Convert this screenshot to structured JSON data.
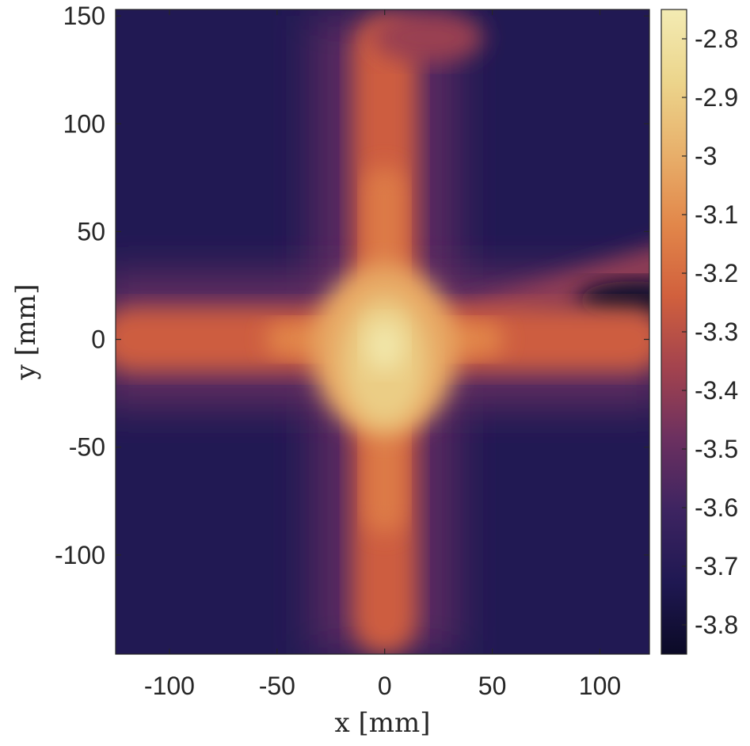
{
  "chart_data": {
    "type": "heatmap",
    "xlabel": "x [mm]",
    "ylabel": "y [mm]",
    "xlim": [
      -125,
      123
    ],
    "ylim": [
      -146,
      153
    ],
    "xticks": [
      -100,
      -50,
      0,
      50,
      100
    ],
    "yticks": [
      -100,
      -50,
      0,
      50,
      100,
      150
    ],
    "colorbar": {
      "range": [
        -3.85,
        -2.75
      ],
      "ticks": [
        -3.8,
        -3.7,
        -3.6,
        -3.5,
        -3.4,
        -3.3,
        -3.2,
        -3.1,
        -3,
        -2.9,
        -2.8
      ],
      "colormap": [
        "#0b0a26",
        "#1f1852",
        "#3d2461",
        "#6b3060",
        "#a3434e",
        "#d1603d",
        "#e2874a",
        "#e8b06b",
        "#ecd58c",
        "#f3ebb3"
      ]
    },
    "background_value": -3.72,
    "peak": {
      "x": 0,
      "y": -5,
      "value": -2.78
    },
    "features": [
      {
        "name": "vertical-band",
        "x_center": 0,
        "halfwidth_mm": 15,
        "y_range": [
          -146,
          150
        ],
        "value": -3.25
      },
      {
        "name": "horizontal-band",
        "y_center": 0,
        "halfwidth_mm": 15,
        "x_range": [
          -125,
          123
        ],
        "value": -3.25
      },
      {
        "name": "upper-right-streak",
        "from": [
          20,
          15
        ],
        "to": [
          123,
          42
        ],
        "value": -3.4
      },
      {
        "name": "top-blob",
        "x": 20,
        "y": 140,
        "value": -3.38
      }
    ],
    "grid": false,
    "legend": "colorbar-right"
  }
}
